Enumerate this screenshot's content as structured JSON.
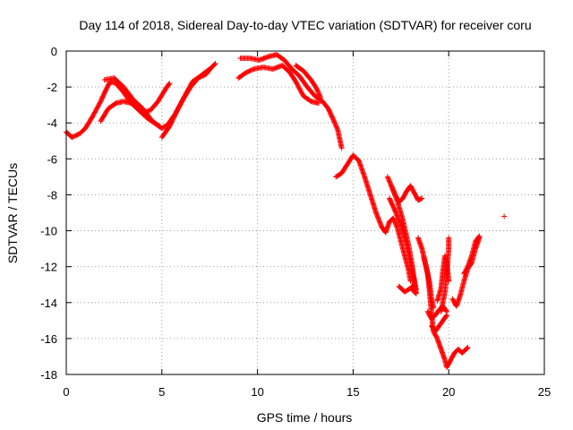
{
  "chart_data": {
    "type": "scatter",
    "title": "Day 114 of 2018, Sidereal Day-to-day VTEC variation (SDTVAR) for receiver coru",
    "xlabel": "GPS time / hours",
    "ylabel": "SDTVAR / TECUs",
    "xlim": [
      0,
      25
    ],
    "ylim": [
      -18,
      0
    ],
    "xticks": [
      0,
      5,
      10,
      15,
      20,
      25
    ],
    "yticks": [
      0,
      -2,
      -4,
      -6,
      -8,
      -10,
      -12,
      -14,
      -16,
      -18
    ],
    "grid": true,
    "marker": "+",
    "colors": {
      "series": "#ff0000",
      "grid": "#a0a0a0",
      "axes": "#000000"
    },
    "series": [
      {
        "segments": [
          [
            [
              0.0,
              -4.5
            ],
            [
              0.3,
              -4.8
            ],
            [
              0.7,
              -4.6
            ],
            [
              1.0,
              -4.3
            ],
            [
              1.4,
              -3.6
            ],
            [
              1.8,
              -2.8
            ],
            [
              2.1,
              -2.1
            ],
            [
              2.3,
              -1.7
            ],
            [
              2.6,
              -1.8
            ],
            [
              3.0,
              -2.3
            ],
            [
              3.4,
              -2.9
            ],
            [
              3.8,
              -3.3
            ],
            [
              4.2,
              -3.7
            ],
            [
              4.6,
              -4.0
            ],
            [
              5.0,
              -4.3
            ],
            [
              5.3,
              -4.1
            ],
            [
              5.7,
              -3.5
            ],
            [
              6.1,
              -2.7
            ],
            [
              6.5,
              -2.0
            ],
            [
              6.9,
              -1.5
            ],
            [
              7.3,
              -1.3
            ],
            [
              7.6,
              -0.9
            ],
            [
              7.8,
              -0.7
            ]
          ],
          [
            [
              1.8,
              -3.9
            ],
            [
              2.2,
              -3.2
            ],
            [
              2.6,
              -2.9
            ],
            [
              3.0,
              -2.8
            ],
            [
              3.4,
              -2.9
            ],
            [
              3.8,
              -3.2
            ],
            [
              4.1,
              -3.4
            ],
            [
              4.4,
              -3.3
            ],
            [
              4.8,
              -2.8
            ],
            [
              5.2,
              -2.1
            ],
            [
              5.4,
              -1.8
            ]
          ],
          [
            [
              2.0,
              -1.6
            ],
            [
              2.5,
              -1.5
            ],
            [
              3.0,
              -2.0
            ],
            [
              3.5,
              -2.7
            ],
            [
              4.0,
              -3.2
            ],
            [
              4.5,
              -3.9
            ],
            [
              4.9,
              -4.2
            ]
          ],
          [
            [
              5.0,
              -4.8
            ],
            [
              5.4,
              -4.2
            ],
            [
              5.8,
              -3.3
            ],
            [
              6.2,
              -2.5
            ],
            [
              6.6,
              -1.7
            ],
            [
              7.0,
              -1.4
            ],
            [
              7.5,
              -1.0
            ]
          ],
          [
            [
              9.0,
              -1.5
            ],
            [
              9.4,
              -1.2
            ],
            [
              9.8,
              -1.0
            ],
            [
              10.3,
              -0.9
            ],
            [
              10.8,
              -1.0
            ],
            [
              11.3,
              -0.8
            ],
            [
              11.7,
              -1.2
            ],
            [
              12.0,
              -1.7
            ],
            [
              12.4,
              -2.5
            ],
            [
              12.8,
              -2.8
            ],
            [
              13.2,
              -2.9
            ]
          ],
          [
            [
              9.1,
              -0.4
            ],
            [
              9.6,
              -0.4
            ],
            [
              10.1,
              -0.5
            ],
            [
              10.6,
              -0.3
            ],
            [
              11.0,
              -0.2
            ],
            [
              11.4,
              -0.5
            ],
            [
              11.8,
              -1.0
            ],
            [
              12.2,
              -1.4
            ],
            [
              12.6,
              -2.0
            ],
            [
              13.0,
              -2.5
            ],
            [
              13.4,
              -2.8
            ],
            [
              13.7,
              -3.2
            ],
            [
              14.0,
              -3.9
            ],
            [
              14.2,
              -4.4
            ],
            [
              14.4,
              -5.4
            ]
          ],
          [
            [
              12.0,
              -0.8
            ],
            [
              12.4,
              -1.1
            ],
            [
              12.8,
              -1.6
            ],
            [
              13.1,
              -2.1
            ],
            [
              13.3,
              -2.6
            ]
          ],
          [
            [
              14.1,
              -7.0
            ],
            [
              14.4,
              -6.8
            ],
            [
              14.7,
              -6.3
            ],
            [
              15.0,
              -5.8
            ],
            [
              15.3,
              -6.1
            ],
            [
              15.6,
              -7.0
            ],
            [
              15.9,
              -8.0
            ],
            [
              16.2,
              -9.0
            ],
            [
              16.5,
              -9.8
            ],
            [
              16.7,
              -10.1
            ],
            [
              16.9,
              -9.5
            ],
            [
              17.1,
              -9.3
            ],
            [
              17.3,
              -9.8
            ],
            [
              17.5,
              -10.6
            ],
            [
              17.7,
              -11.4
            ],
            [
              17.9,
              -12.2
            ],
            [
              18.0,
              -12.8
            ]
          ],
          [
            [
              16.8,
              -7.0
            ],
            [
              17.0,
              -7.5
            ],
            [
              17.2,
              -8.0
            ],
            [
              17.4,
              -8.4
            ],
            [
              17.6,
              -8.2
            ],
            [
              17.8,
              -7.8
            ],
            [
              18.0,
              -7.5
            ],
            [
              18.2,
              -7.9
            ],
            [
              18.4,
              -8.3
            ],
            [
              18.6,
              -8.2
            ]
          ],
          [
            [
              16.9,
              -8.2
            ],
            [
              17.2,
              -8.9
            ],
            [
              17.5,
              -9.7
            ],
            [
              17.8,
              -10.8
            ],
            [
              18.0,
              -11.8
            ],
            [
              18.2,
              -12.7
            ],
            [
              18.3,
              -13.3
            ]
          ],
          [
            [
              17.0,
              -7.5
            ],
            [
              17.3,
              -8.3
            ],
            [
              17.6,
              -9.4
            ],
            [
              17.9,
              -10.8
            ],
            [
              18.1,
              -12.0
            ],
            [
              18.2,
              -13.0
            ],
            [
              18.3,
              -13.5
            ],
            [
              18.1,
              -13.3
            ]
          ],
          [
            [
              17.4,
              -13.1
            ],
            [
              17.7,
              -13.4
            ],
            [
              18.0,
              -13.2
            ],
            [
              18.2,
              -13.0
            ]
          ],
          [
            [
              18.4,
              -10.4
            ],
            [
              18.6,
              -11.0
            ],
            [
              18.8,
              -11.9
            ],
            [
              19.0,
              -12.9
            ],
            [
              19.1,
              -13.8
            ],
            [
              19.2,
              -14.3
            ]
          ],
          [
            [
              18.7,
              -11.5
            ],
            [
              18.9,
              -12.4
            ],
            [
              19.0,
              -13.4
            ],
            [
              19.1,
              -14.6
            ],
            [
              19.2,
              -15.6
            ],
            [
              19.4,
              -16.0
            ],
            [
              19.6,
              -16.6
            ],
            [
              19.8,
              -17.2
            ],
            [
              19.9,
              -17.6
            ],
            [
              20.1,
              -17.2
            ],
            [
              20.3,
              -16.8
            ],
            [
              20.5,
              -16.6
            ],
            [
              20.7,
              -16.8
            ],
            [
              20.9,
              -16.6
            ],
            [
              21.0,
              -16.5
            ]
          ],
          [
            [
              18.9,
              -14.5
            ],
            [
              19.1,
              -14.9
            ],
            [
              19.3,
              -14.7
            ],
            [
              19.5,
              -14.4
            ],
            [
              19.7,
              -14.2
            ],
            [
              19.9,
              -14.5
            ]
          ],
          [
            [
              19.1,
              -15.3
            ],
            [
              19.3,
              -15.6
            ],
            [
              19.5,
              -15.3
            ],
            [
              19.7,
              -15.0
            ],
            [
              19.9,
              -14.7
            ]
          ],
          [
            [
              19.4,
              -13.9
            ],
            [
              19.6,
              -13.2
            ],
            [
              19.7,
              -12.2
            ],
            [
              19.8,
              -11.4
            ],
            [
              19.9,
              -11.8
            ],
            [
              20.0,
              -12.8
            ]
          ],
          [
            [
              19.6,
              -14.5
            ],
            [
              19.8,
              -13.4
            ],
            [
              19.9,
              -12.3
            ],
            [
              20.0,
              -11.0
            ],
            [
              20.0,
              -10.4
            ]
          ],
          [
            [
              20.2,
              -13.8
            ],
            [
              20.4,
              -14.2
            ],
            [
              20.6,
              -13.6
            ],
            [
              20.8,
              -12.8
            ],
            [
              21.0,
              -12.1
            ],
            [
              21.2,
              -11.8
            ],
            [
              21.4,
              -11.0
            ],
            [
              21.6,
              -10.4
            ]
          ],
          [
            [
              20.8,
              -12.4
            ],
            [
              21.0,
              -12.0
            ],
            [
              21.2,
              -11.4
            ],
            [
              21.4,
              -10.6
            ],
            [
              21.6,
              -10.3
            ]
          ],
          [
            [
              22.9,
              -9.2
            ]
          ]
        ]
      }
    ]
  }
}
